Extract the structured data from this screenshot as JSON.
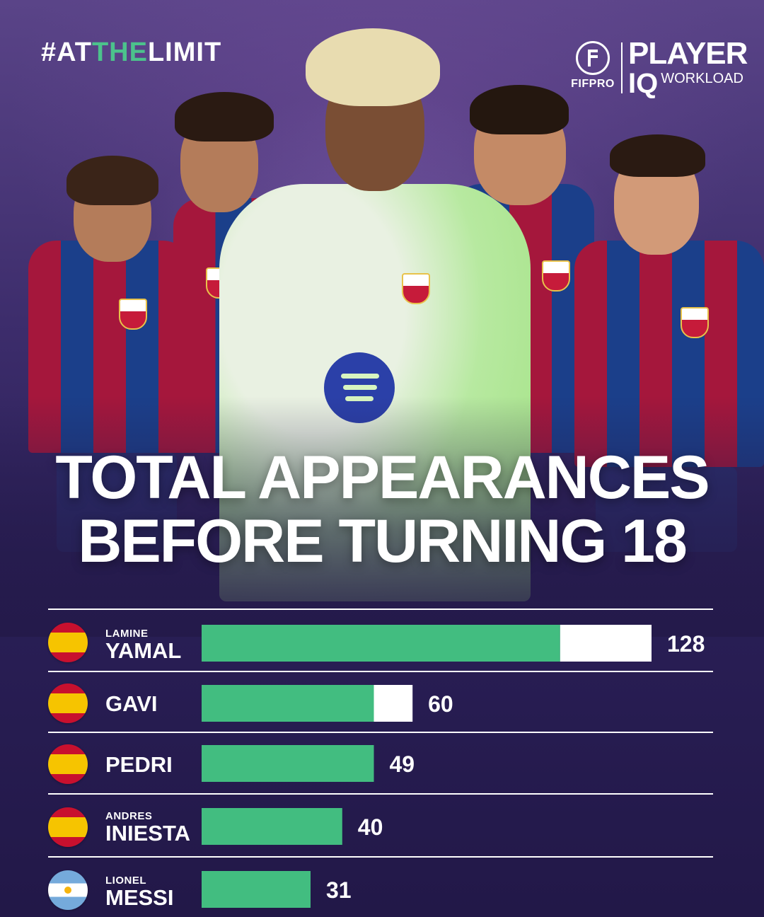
{
  "brand": {
    "hashtag_prefix": "#AT",
    "hashtag_accent": "THE",
    "hashtag_suffix": "LIMIT",
    "fifpro": "FIFPRO",
    "piq_player": "PLAYER",
    "piq_iq": "IQ",
    "piq_workload": "WORKLOAD"
  },
  "colors": {
    "bar": "#42bd80",
    "bar_highlight": "#ffffff",
    "accent": "#4cc28c",
    "background": "#2a1f57"
  },
  "chart_data": {
    "type": "bar",
    "orientation": "horizontal",
    "title_line1": "TOTAL APPEARANCES",
    "title_line2": "BEFORE TURNING 18",
    "categories": [
      {
        "first": "LAMINE",
        "last": "YAMAL",
        "flag": "spain-flag-icon"
      },
      {
        "first": "",
        "last": "GAVI",
        "flag": "spain-flag-icon"
      },
      {
        "first": "",
        "last": "PEDRI",
        "flag": "spain-flag-icon"
      },
      {
        "first": "ANDRES",
        "last": "INIESTA",
        "flag": "spain-flag-icon"
      },
      {
        "first": "LIONEL",
        "last": "MESSI",
        "flag": "argentina-flag-icon"
      }
    ],
    "values": [
      128,
      60,
      49,
      40,
      31
    ],
    "green_portion": [
      102,
      49,
      49,
      40,
      31
    ],
    "value_labels": [
      "128",
      "60",
      "49",
      "40",
      "31"
    ],
    "xlim": [
      0,
      128
    ],
    "grid": false,
    "legend": "none"
  }
}
